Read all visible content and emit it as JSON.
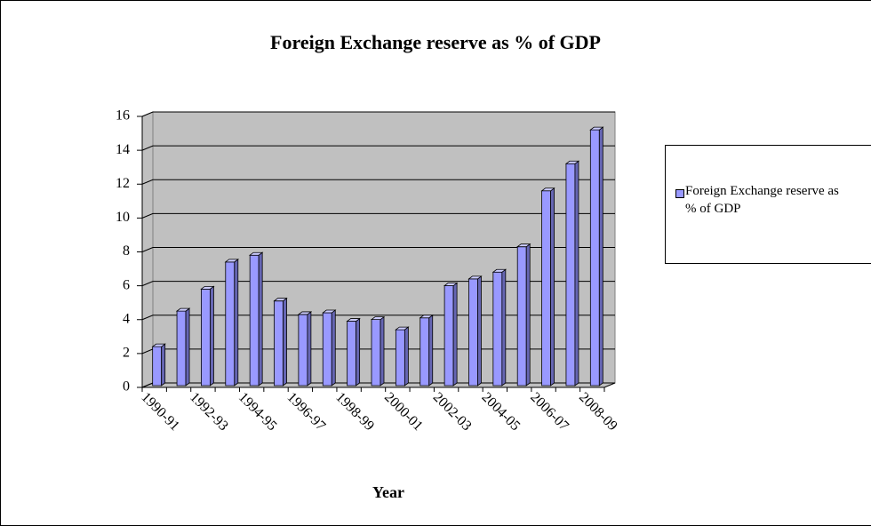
{
  "chart_data": {
    "type": "bar3d",
    "title": "Foreign Exchange reserve as % of GDP",
    "x_label": "Year",
    "categories": [
      "1990-91",
      null,
      "1992-93",
      null,
      "1994-95",
      null,
      "1996-97",
      null,
      "1998-99",
      null,
      "2000-01",
      null,
      "2002-03",
      null,
      "2004-05",
      null,
      "2006-07",
      null,
      "2008-09"
    ],
    "series": [
      {
        "name": "Foreign Exchange reserve as % of GDP",
        "color": "#9999ff",
        "values": [
          2.3,
          4.4,
          5.7,
          7.3,
          7.7,
          5.0,
          4.2,
          4.3,
          3.8,
          3.9,
          3.3,
          4.0,
          5.9,
          6.3,
          6.7,
          8.2,
          11.5,
          13.1,
          15.1
        ]
      }
    ],
    "ylim": [
      0,
      16
    ],
    "yticks": [
      0,
      2,
      4,
      6,
      8,
      10,
      12,
      14,
      16
    ],
    "grid": true
  }
}
